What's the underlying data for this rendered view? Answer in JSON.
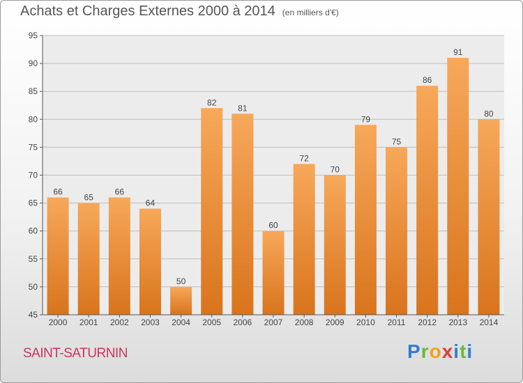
{
  "title": "Achats et Charges Externes 2000 à 2014",
  "unit_note": "(en milliers d'€)",
  "commune": "SAINT-SATURNIN",
  "logo": {
    "letters": [
      "P",
      "r",
      "o",
      "x",
      "i",
      "t",
      "i"
    ],
    "colors": [
      "#2f7fd0",
      "#6db83a",
      "#f0a21b",
      "#e03b3b",
      "#2f7fd0",
      "#6db83a",
      "#2f7fd0"
    ]
  },
  "chart_data": {
    "type": "bar",
    "title": "Achats et Charges Externes 2000 à 2014",
    "subtitle": "(en milliers d'€)",
    "categories": [
      "2000",
      "2001",
      "2002",
      "2003",
      "2004",
      "2005",
      "2006",
      "2007",
      "2008",
      "2009",
      "2010",
      "2011",
      "2012",
      "2013",
      "2014"
    ],
    "values": [
      66,
      65,
      66,
      64,
      50,
      82,
      81,
      60,
      72,
      70,
      79,
      75,
      86,
      91,
      80
    ],
    "ylim": [
      45,
      95
    ],
    "yticks": [
      45,
      50,
      55,
      60,
      65,
      70,
      75,
      80,
      85,
      90,
      95
    ],
    "grid": true,
    "bar_color_top": "#f7a85a",
    "bar_color_bottom": "#d9741c"
  }
}
